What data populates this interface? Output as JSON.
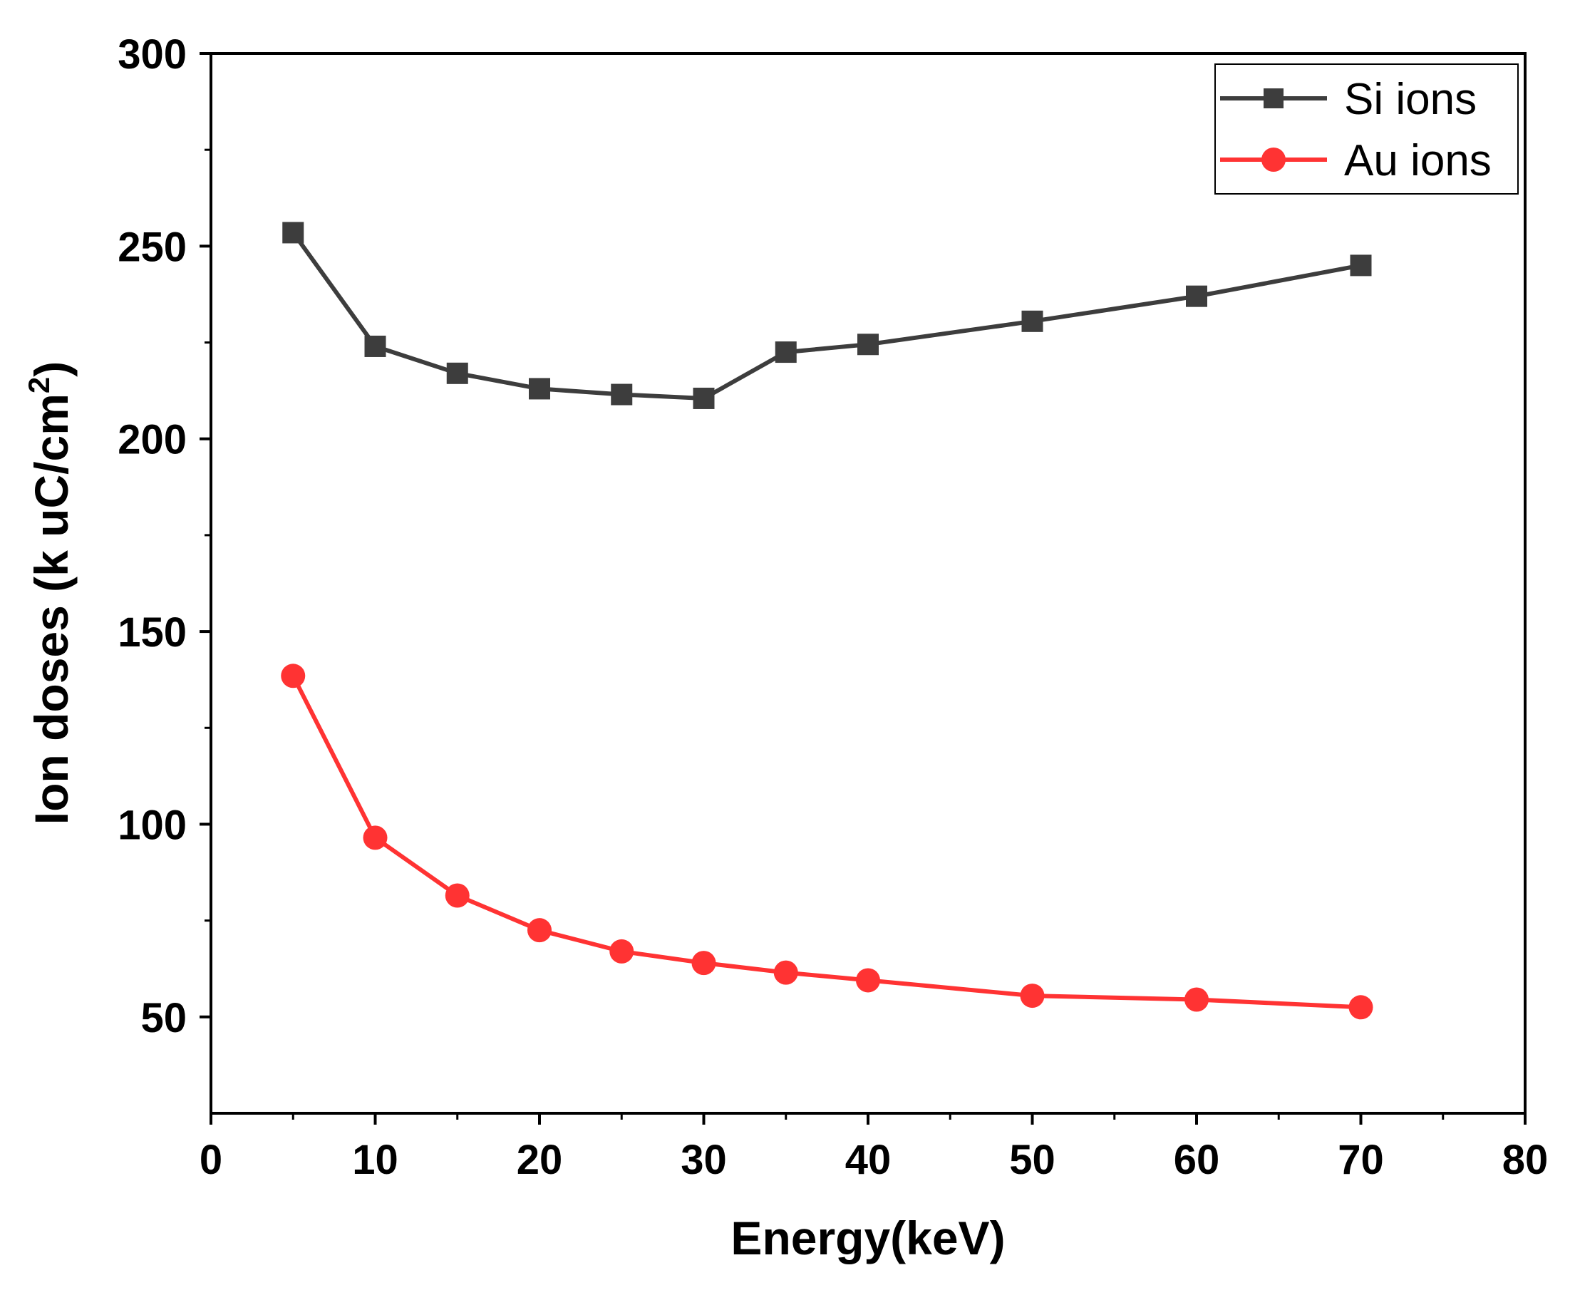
{
  "chart_data": {
    "type": "line",
    "title": "",
    "xlabel": "Energy(keV)",
    "ylabel": {
      "main": "Ion doses (k uC/cm",
      "superscript": "2",
      "close": ")"
    },
    "xlim": [
      0,
      80
    ],
    "ylim": [
      25,
      300
    ],
    "xticks": [
      0,
      10,
      20,
      30,
      40,
      50,
      60,
      70,
      80
    ],
    "xticks_minor": [
      5,
      15,
      25,
      35,
      45,
      55,
      65,
      75
    ],
    "yticks": [
      50,
      100,
      150,
      200,
      250,
      300
    ],
    "yticks_minor": [
      75,
      125,
      175,
      225,
      275
    ],
    "grid": false,
    "legend_position": "top-right",
    "series": [
      {
        "name": "Si ions",
        "marker": "square",
        "color": "#3d3d3d",
        "x": [
          5,
          10,
          15,
          20,
          25,
          30,
          35,
          40,
          50,
          60,
          70
        ],
        "values": [
          253.5,
          224,
          217,
          213,
          211.5,
          210.5,
          222.5,
          224.5,
          230.5,
          237,
          245
        ]
      },
      {
        "name": "Au ions",
        "marker": "circle",
        "color": "#ff3333",
        "x": [
          5,
          10,
          15,
          20,
          25,
          30,
          35,
          40,
          50,
          60,
          70
        ],
        "values": [
          138.5,
          96.5,
          81.5,
          72.5,
          67,
          64,
          61.5,
          59.5,
          55.5,
          54.5,
          52.5
        ]
      }
    ]
  }
}
